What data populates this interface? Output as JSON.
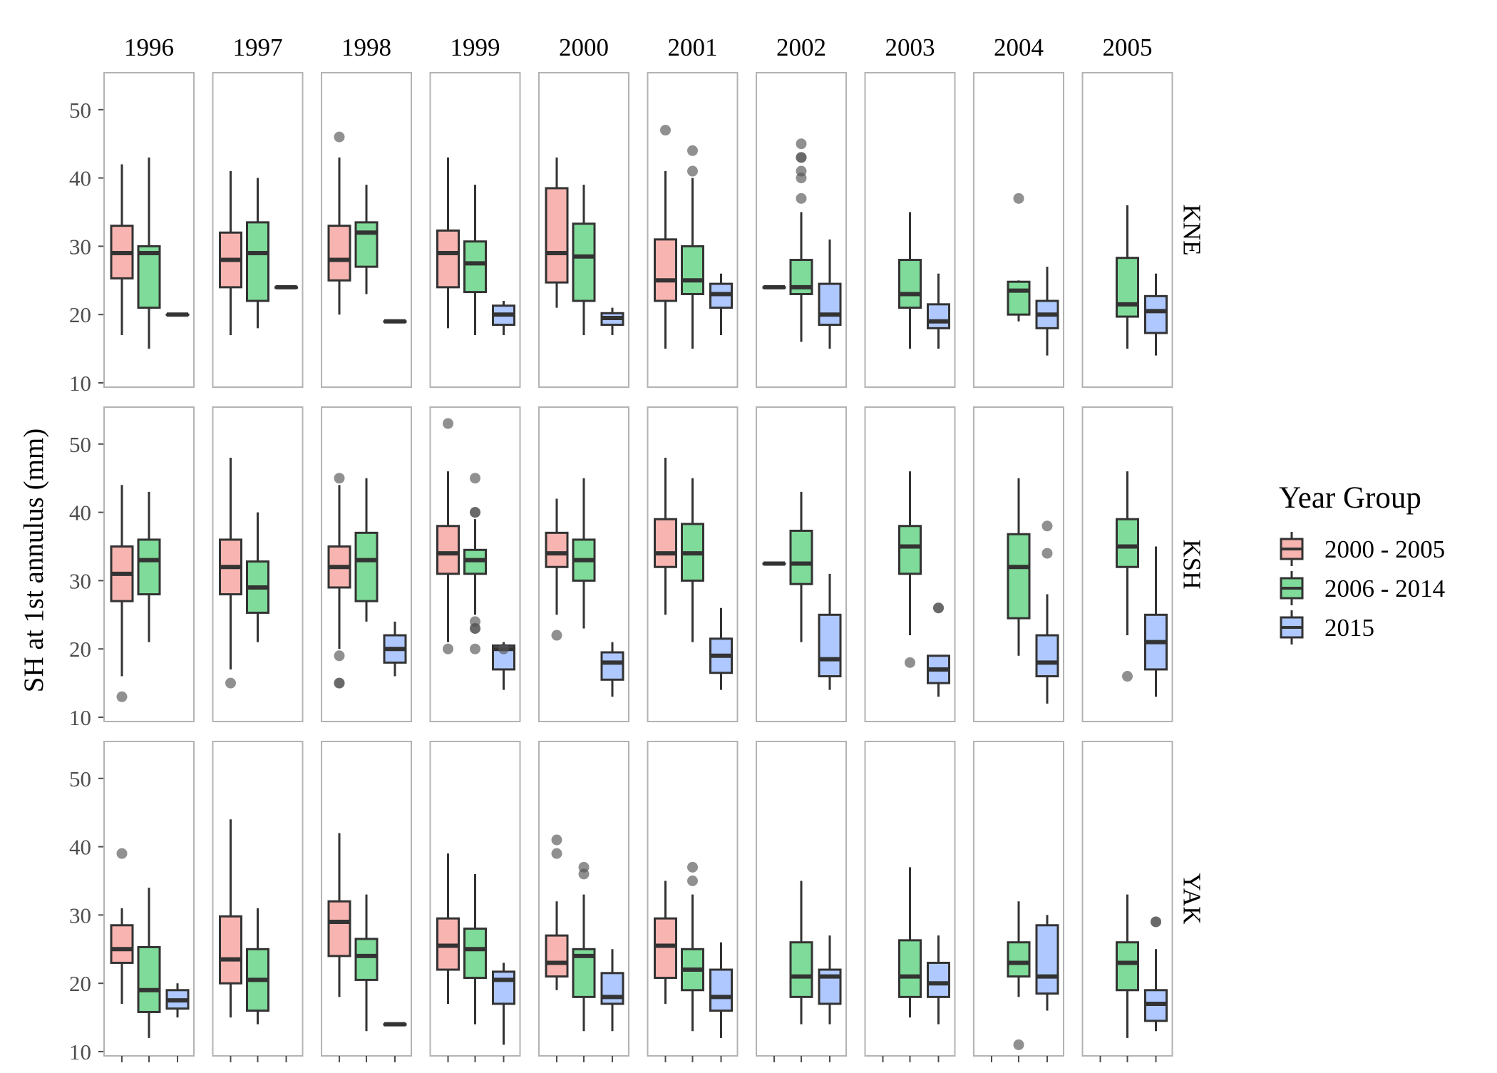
{
  "colors": {
    "group_2000_2005": "#F8B4B0",
    "group_2006_2014": "#7FDB99",
    "group_2015": "#AFC8FF",
    "box_stroke": "#333333",
    "panel_border": "#B3B3B3",
    "tick_text": "#4D4D4D",
    "outlier": "#555555"
  },
  "chart_data": {
    "type": "boxplot",
    "ylabel": "SH at 1st annulus (mm)",
    "ylim": [
      9.5,
      55
    ],
    "yticks": [
      10,
      20,
      30,
      40,
      50
    ],
    "facet_cols": [
      "1996",
      "1997",
      "1998",
      "1999",
      "2000",
      "2001",
      "2002",
      "2003",
      "2004",
      "2005"
    ],
    "facet_rows": [
      "KNE",
      "KSH",
      "YAK"
    ],
    "legend": {
      "title": "Year Group",
      "position": "right",
      "entries": [
        "2000 - 2005",
        "2006 - 2014",
        "2015"
      ]
    },
    "panels": [
      [
        [
          [
            17,
            25.3,
            29,
            33,
            42,
            []
          ],
          [
            15,
            21,
            29,
            30,
            43,
            []
          ],
          [
            20,
            20,
            20,
            20,
            20,
            []
          ]
        ],
        [
          [
            17,
            24,
            28,
            32,
            41,
            []
          ],
          [
            18,
            22,
            29,
            33.5,
            40,
            []
          ],
          [
            24,
            24,
            24,
            24,
            24,
            []
          ]
        ],
        [
          [
            20,
            25,
            28,
            33,
            43,
            [
              46
            ]
          ],
          [
            23,
            27,
            32,
            33.5,
            39,
            []
          ],
          [
            19,
            19,
            19,
            19,
            19,
            []
          ]
        ],
        [
          [
            18,
            24,
            29,
            32.3,
            43,
            []
          ],
          [
            17,
            23.3,
            27.5,
            30.7,
            39,
            []
          ],
          [
            17,
            18.5,
            20,
            21.3,
            22,
            []
          ]
        ],
        [
          [
            21,
            24.7,
            29,
            38.5,
            43,
            []
          ],
          [
            17,
            22,
            28.5,
            33.3,
            39,
            []
          ],
          [
            17,
            18.5,
            19.5,
            20.2,
            21,
            []
          ]
        ],
        [
          [
            15,
            22,
            25,
            31,
            41,
            [
              47
            ]
          ],
          [
            15,
            23,
            25,
            30,
            40,
            [
              44,
              41
            ]
          ],
          [
            17,
            21,
            23,
            24.5,
            26,
            []
          ]
        ],
        [
          [
            24,
            24,
            24,
            24,
            24,
            []
          ],
          [
            16,
            23,
            24,
            28,
            35,
            [
              45,
              43,
              43,
              41,
              40,
              37
            ]
          ],
          [
            15,
            18.5,
            20,
            24.5,
            31,
            []
          ]
        ],
        [
          null,
          [
            15,
            21,
            23,
            28,
            35,
            []
          ],
          [
            15,
            18,
            19,
            21.5,
            26,
            []
          ]
        ],
        [
          null,
          [
            19,
            20,
            23.5,
            24.8,
            25,
            [
              37
            ]
          ],
          [
            14,
            18,
            20,
            22,
            27,
            []
          ]
        ],
        [
          null,
          [
            15,
            19.7,
            21.5,
            28.3,
            36,
            []
          ],
          [
            14,
            17.3,
            20.5,
            22.7,
            26,
            []
          ]
        ]
      ],
      [
        [
          [
            16,
            27,
            31,
            35,
            44,
            [
              13
            ]
          ],
          [
            21,
            28,
            33,
            36,
            43,
            []
          ],
          null
        ],
        [
          [
            17,
            28,
            32,
            36,
            48,
            [
              15
            ]
          ],
          [
            21,
            25.3,
            29,
            32.8,
            40,
            []
          ],
          null
        ],
        [
          [
            20,
            29,
            32,
            35,
            44,
            [
              45,
              19,
              15,
              15
            ]
          ],
          [
            24,
            27,
            33,
            37,
            45,
            []
          ],
          [
            16,
            18,
            20,
            22,
            24,
            []
          ]
        ],
        [
          [
            21,
            31,
            34,
            38,
            46,
            [
              53,
              20
            ]
          ],
          [
            25,
            31,
            33,
            34.5,
            39,
            [
              45,
              40,
              40,
              24,
              23,
              23,
              20
            ]
          ],
          [
            14,
            17,
            20,
            20.5,
            21,
            [
              20
            ]
          ]
        ],
        [
          [
            25,
            32,
            34,
            37,
            42,
            [
              22
            ]
          ],
          [
            23,
            30,
            33,
            36,
            45,
            []
          ],
          [
            13,
            15.5,
            18,
            19.5,
            21,
            []
          ]
        ],
        [
          [
            25,
            32,
            34,
            39,
            48,
            []
          ],
          [
            21,
            30,
            34,
            38.3,
            45,
            []
          ],
          [
            14,
            16.5,
            19,
            21.5,
            26,
            []
          ]
        ],
        [
          [
            32.5,
            32.5,
            32.5,
            32.5,
            32.5,
            []
          ],
          [
            21,
            29.5,
            32.5,
            37.3,
            43,
            []
          ],
          [
            14,
            16,
            18.5,
            25,
            31,
            []
          ]
        ],
        [
          null,
          [
            22,
            31,
            35,
            38,
            46,
            [
              18
            ]
          ],
          [
            13,
            15,
            17,
            19,
            19,
            [
              26,
              26
            ]
          ]
        ],
        [
          null,
          [
            19,
            24.5,
            32,
            36.8,
            45,
            []
          ],
          [
            12,
            16,
            18,
            22,
            28,
            [
              38,
              34
            ]
          ]
        ],
        [
          null,
          [
            22,
            32,
            35,
            39,
            46,
            [
              16
            ]
          ],
          [
            13,
            17,
            21,
            25,
            35,
            []
          ]
        ]
      ],
      [
        [
          [
            17,
            23,
            25,
            28.5,
            31,
            [
              39
            ]
          ],
          [
            12,
            15.8,
            19,
            25.3,
            34,
            []
          ],
          [
            15,
            16.3,
            17.5,
            19,
            20,
            []
          ]
        ],
        [
          [
            15,
            20,
            23.5,
            29.8,
            44,
            []
          ],
          [
            14,
            16,
            20.5,
            25,
            31,
            []
          ],
          null
        ],
        [
          [
            18,
            24,
            29,
            32,
            42,
            []
          ],
          [
            13,
            20.5,
            24,
            26.5,
            33,
            []
          ],
          [
            14,
            14,
            14,
            14,
            14,
            []
          ]
        ],
        [
          [
            17,
            22,
            25.5,
            29.5,
            39,
            []
          ],
          [
            14,
            20.8,
            25,
            28,
            36,
            []
          ],
          [
            11,
            17,
            20.5,
            21.7,
            23,
            []
          ]
        ],
        [
          [
            19,
            21,
            23,
            27,
            32,
            [
              41,
              39
            ]
          ],
          [
            13,
            18,
            24,
            25,
            33,
            [
              37,
              36
            ]
          ],
          [
            13,
            17,
            18,
            21.5,
            25,
            []
          ]
        ],
        [
          [
            17,
            20.8,
            25.5,
            29.5,
            35,
            []
          ],
          [
            13,
            19,
            22,
            25,
            33,
            [
              37,
              35
            ]
          ],
          [
            12,
            16,
            18,
            22,
            26,
            []
          ]
        ],
        [
          null,
          [
            14,
            18,
            21,
            26,
            35,
            []
          ],
          [
            14,
            17,
            21,
            22,
            27,
            []
          ]
        ],
        [
          null,
          [
            15,
            18,
            21,
            26.3,
            37,
            []
          ],
          [
            14,
            18,
            20,
            23,
            27,
            []
          ]
        ],
        [
          null,
          [
            18,
            21,
            23,
            26,
            32,
            [
              11
            ]
          ],
          [
            16,
            18.5,
            21,
            28.5,
            30,
            []
          ]
        ],
        [
          null,
          [
            12,
            19,
            23,
            26,
            33,
            []
          ],
          [
            13,
            14.5,
            17,
            19,
            25,
            [
              29,
              29
            ]
          ]
        ]
      ]
    ]
  }
}
